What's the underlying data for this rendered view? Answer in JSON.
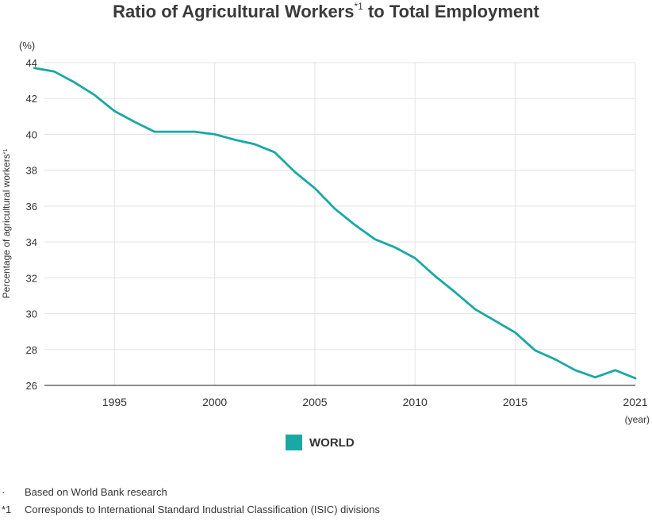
{
  "title": {
    "main": "Ratio of Agricultural Workers",
    "superscript": "*1",
    "tail": "to Total Employment"
  },
  "chart_data": {
    "type": "line",
    "ylabel": "Percentage of agricultural workers",
    "ylabel_sup": "*1",
    "y_unit": "(%)",
    "x_unit": "(year)",
    "xlim": [
      1991,
      2021
    ],
    "ylim": [
      26,
      44
    ],
    "x_ticks": [
      1995,
      2000,
      2005,
      2010,
      2015,
      2021
    ],
    "y_ticks": [
      26,
      28,
      30,
      32,
      34,
      36,
      38,
      40,
      42,
      44
    ],
    "grid": true,
    "line_color": "#1aa8a4",
    "series": [
      {
        "name": "WORLD",
        "x": [
          1991,
          1992,
          1993,
          1994,
          1995,
          1996,
          1997,
          1998,
          1999,
          2000,
          2001,
          2002,
          2003,
          2004,
          2005,
          2006,
          2007,
          2008,
          2009,
          2010,
          2011,
          2012,
          2013,
          2014,
          2015,
          2016,
          2017,
          2018,
          2019,
          2020,
          2021
        ],
        "values": [
          43.7,
          43.5,
          42.9,
          42.2,
          41.3,
          40.7,
          40.15,
          40.15,
          40.15,
          40.0,
          39.7,
          39.45,
          39.0,
          37.9,
          37.0,
          35.85,
          34.95,
          34.15,
          33.7,
          33.1,
          32.1,
          31.2,
          30.25,
          29.6,
          28.95,
          27.95,
          27.45,
          26.85,
          26.45,
          26.85,
          26.4
        ]
      }
    ]
  },
  "legend": {
    "label": "WORLD",
    "color": "#1aa8a4"
  },
  "notes": [
    {
      "mark": "·",
      "text": "Based on World Bank research"
    },
    {
      "mark": "*1",
      "text": "Corresponds to International Standard Industrial Classification (ISIC) divisions"
    }
  ]
}
